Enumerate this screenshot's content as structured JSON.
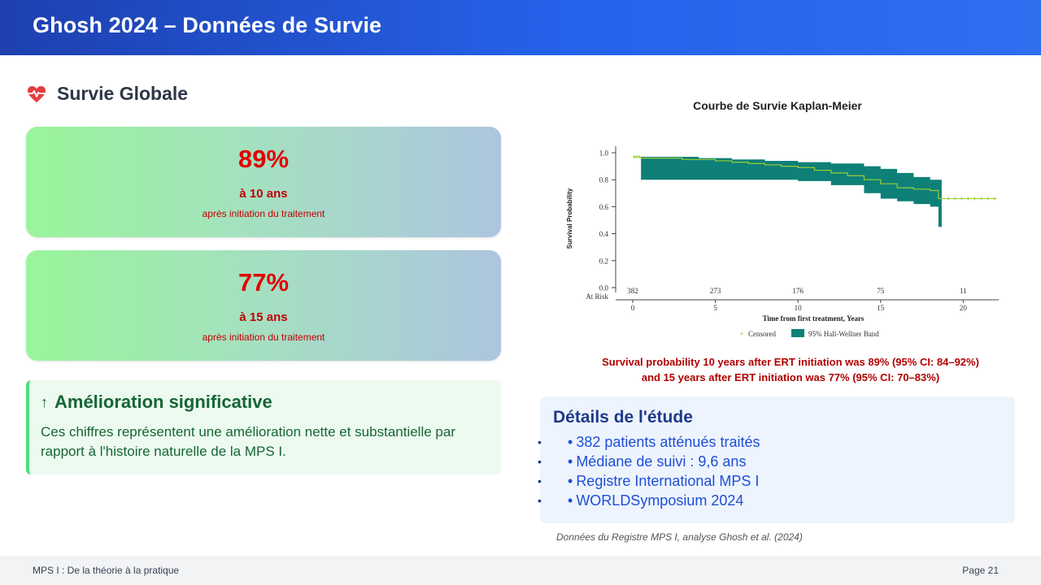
{
  "header": {
    "title": "Ghosh 2024 – Données de Survie"
  },
  "section": {
    "title": "Survie Globale"
  },
  "cards": [
    {
      "value": "89%",
      "label": "à 10 ans",
      "sub": "après initiation du traitement"
    },
    {
      "value": "77%",
      "label": "à 15 ans",
      "sub": "après initiation du traitement"
    }
  ],
  "improvement": {
    "title": "Amélioration significative",
    "text": "Ces chiffres représentent une amélioration nette et substantielle par rapport à l'histoire naturelle de la MPS I."
  },
  "chart": {
    "title": "Courbe de Survie Kaplan-Meier",
    "caption_line1": "Survival probability 10 years after ERT initiation was 89% (95% CI: 84–92%)",
    "caption_line2": "and 15 years after ERT initiation was 77% (95% CI: 70–83%)"
  },
  "chart_data": {
    "type": "line",
    "xlabel": "Time from first treatment, Years",
    "ylabel": "Survival Probability",
    "xlim": [
      0,
      22
    ],
    "ylim": [
      0,
      1.0
    ],
    "y_ticks": [
      "0.0",
      "0.2",
      "0.4",
      "0.6",
      "0.8",
      "1.0"
    ],
    "x_ticks": [
      "0",
      "5",
      "10",
      "15",
      "20"
    ],
    "at_risk_label": "At Risk",
    "at_risk": [
      "382",
      "273",
      "176",
      "75",
      "11"
    ],
    "legend": [
      "Censored",
      "95% Hall-Wellner Band"
    ],
    "series": [
      {
        "x": [
          0,
          0.5,
          2,
          3,
          4,
          5,
          6,
          7,
          8,
          9,
          10,
          11,
          12,
          13,
          14,
          15,
          16,
          17,
          18,
          18.5,
          19,
          20,
          21,
          22
        ],
        "y": [
          0.97,
          0.96,
          0.96,
          0.95,
          0.95,
          0.94,
          0.93,
          0.92,
          0.91,
          0.9,
          0.89,
          0.87,
          0.85,
          0.83,
          0.8,
          0.77,
          0.74,
          0.73,
          0.72,
          0.66,
          0.66,
          0.66,
          0.66,
          0.66
        ]
      }
    ],
    "band": {
      "x": [
        0.5,
        2,
        4,
        6,
        8,
        10,
        12,
        14,
        15,
        16,
        17,
        18,
        18.5
      ],
      "lower": [
        0.8,
        0.8,
        0.8,
        0.8,
        0.8,
        0.79,
        0.76,
        0.7,
        0.66,
        0.64,
        0.62,
        0.6,
        0.45
      ],
      "upper": [
        0.97,
        0.97,
        0.96,
        0.95,
        0.94,
        0.93,
        0.92,
        0.9,
        0.88,
        0.85,
        0.82,
        0.8,
        0.8
      ]
    },
    "colors": {
      "band": "#0e8078",
      "line": "#9acd32",
      "axis": "#444444"
    }
  },
  "details": {
    "title": "Détails de l'étude",
    "items": [
      "382 patients atténués traités",
      "Médiane de suivi : 9,6 ans",
      "Registre International MPS I",
      "WORLDSymposium 2024"
    ]
  },
  "source": "Données du Registre MPS I, analyse Ghosh et al. (2024)",
  "footer": {
    "left": "MPS I : De la théorie à la pratique",
    "right": "Page 21"
  },
  "colors": {
    "accent": "#2563eb",
    "alert": "#e00000",
    "success": "#166534"
  }
}
